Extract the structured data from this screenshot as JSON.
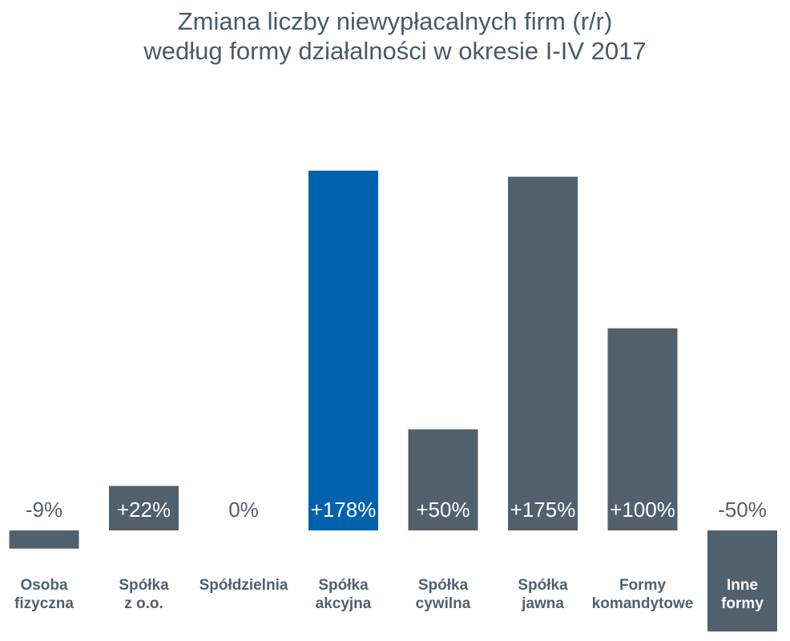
{
  "chart_data": {
    "type": "bar",
    "title_lines": [
      "Zmiana liczby niewypłacalnych firm (r/r)",
      "według formy działalności w okresie I-IV 2017"
    ],
    "categories": [
      [
        "Osoba",
        "fizyczna"
      ],
      [
        "Spółka",
        "z o.o."
      ],
      [
        "Spółdzielnia"
      ],
      [
        "Spółka",
        "akcyjna"
      ],
      [
        "Spółka",
        "cywilna"
      ],
      [
        "Spółka",
        "jawna"
      ],
      [
        "Formy",
        "komandytowe"
      ],
      [
        "Inne",
        "formy"
      ]
    ],
    "values": [
      -9,
      22,
      0,
      178,
      50,
      175,
      100,
      -50
    ],
    "value_labels": [
      "-9%",
      "+22%",
      "0%",
      "+178%",
      "+50%",
      "+175%",
      "+100%",
      "-50%"
    ],
    "highlight_index": 3,
    "ylim": [
      -50,
      178
    ],
    "grid": false,
    "legend": "none",
    "colors": {
      "bar": "#51606d",
      "highlight": "#0062ad",
      "title": "#4a5a68",
      "label_dark": "#51606d",
      "label_light": "#ffffff"
    }
  }
}
